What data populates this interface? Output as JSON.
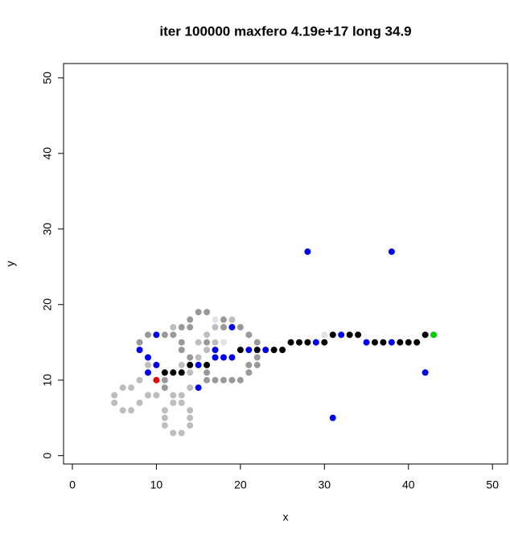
{
  "chart_data": {
    "type": "scatter",
    "title": "iter 100000 maxfero 4.19e+17 long 34.9",
    "x_label": "x",
    "y_label": "y",
    "xlim": [
      -1.05,
      51.8
    ],
    "ylim": [
      -1.1,
      51.9
    ],
    "xticks": [
      0,
      10,
      20,
      30,
      40,
      50
    ],
    "yticks": [
      0,
      10,
      20,
      30,
      40,
      50
    ],
    "series": [
      {
        "color": "#bdbdbd",
        "x": [
          5,
          5,
          6,
          7,
          6,
          7,
          8,
          9,
          10,
          11,
          11,
          11,
          12,
          13,
          12,
          13,
          12,
          13,
          14,
          14,
          14,
          14,
          8,
          9,
          12,
          15,
          16,
          17,
          17,
          19,
          14,
          15,
          16,
          13
        ],
        "y": [
          8,
          7,
          9,
          9,
          6,
          6,
          7,
          8,
          8,
          6,
          5,
          4,
          8,
          8,
          7,
          7,
          3,
          3,
          6,
          5,
          4,
          9,
          10,
          12,
          17,
          15,
          16,
          17,
          15,
          18,
          11,
          13,
          14,
          12
        ]
      },
      {
        "color": "#e3e3e3",
        "x": [
          30,
          17,
          18
        ],
        "y": [
          16,
          18,
          15
        ]
      },
      {
        "color": "#999999",
        "x": [
          15,
          16,
          14,
          18,
          8,
          9,
          11,
          12,
          13,
          14,
          18,
          20,
          21,
          22,
          16,
          14,
          22,
          21,
          22,
          21,
          16,
          16,
          17,
          18,
          19,
          20,
          11,
          11,
          13,
          13
        ],
        "y": [
          19,
          19,
          18,
          18,
          15,
          16,
          16,
          16,
          17,
          17,
          17,
          17,
          16,
          15,
          15,
          13,
          13,
          12,
          12,
          11,
          11,
          10,
          10,
          10,
          10,
          10,
          10,
          9,
          15,
          14
        ]
      },
      {
        "color": "#000000",
        "x": [
          11,
          12,
          13,
          14,
          16,
          20,
          22,
          24,
          25,
          26,
          27,
          28,
          30,
          31,
          33,
          34,
          36,
          37,
          39,
          40,
          41,
          42
        ],
        "y": [
          11,
          11,
          11,
          12,
          12,
          14,
          14,
          14,
          14,
          15,
          15,
          15,
          15,
          16,
          16,
          16,
          15,
          15,
          15,
          15,
          15,
          16
        ]
      },
      {
        "color": "#0000ee",
        "x": [
          28,
          38,
          19,
          10,
          32,
          8,
          17,
          21,
          23,
          9,
          17,
          18,
          19,
          29,
          35,
          38,
          10,
          15,
          9,
          42,
          15,
          31
        ],
        "y": [
          27,
          27,
          17,
          16,
          16,
          14,
          14,
          14,
          14,
          13,
          13,
          13,
          13,
          15,
          15,
          15,
          12,
          12,
          11,
          11,
          9,
          5
        ]
      },
      {
        "color": "#ee0000",
        "x": [
          10
        ],
        "y": [
          10
        ]
      },
      {
        "color": "#00cd00",
        "x": [
          43
        ],
        "y": [
          16
        ]
      }
    ]
  }
}
